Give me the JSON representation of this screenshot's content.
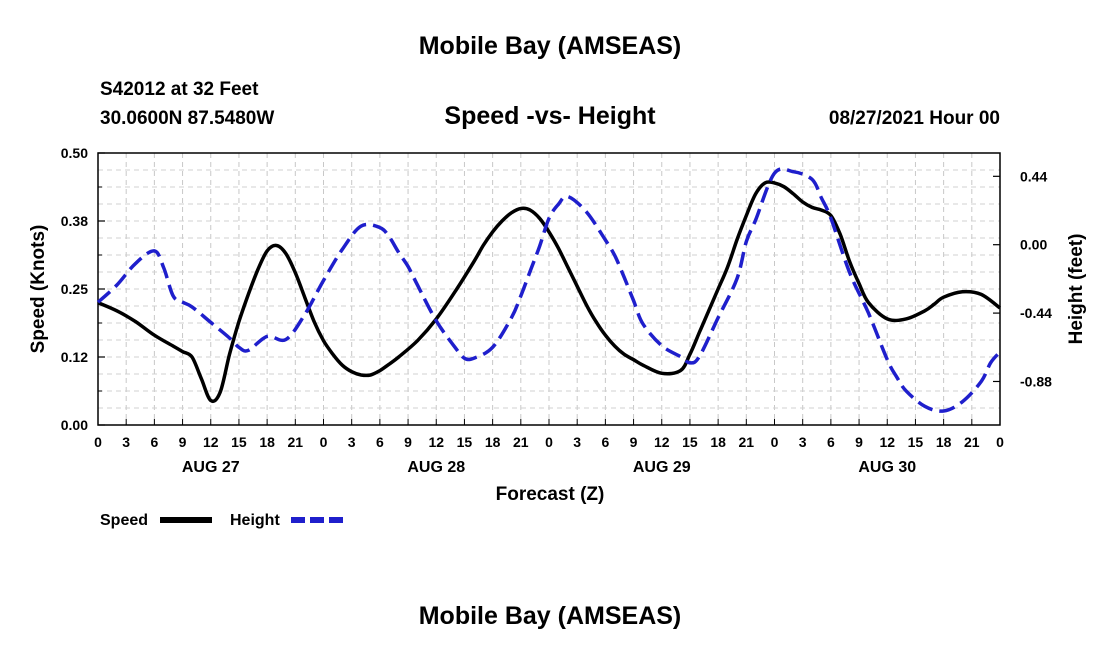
{
  "header": {
    "title": "Mobile Bay (AMSEAS)",
    "station": "S42012 at 32 Feet",
    "coords": "30.0600N  87.5480W",
    "subtitle": "Speed -vs- Height",
    "datetime": "08/27/2021 Hour 00",
    "footer_title": "Mobile Bay (AMSEAS)"
  },
  "legend": {
    "speed_label": "Speed",
    "height_label": "Height"
  },
  "chart_data": {
    "type": "line",
    "title": "Speed -vs- Height",
    "xlabel": "Forecast (Z)",
    "ylabel": "Speed (Knots)",
    "y2label": "Height (feet)",
    "xlim": [
      0,
      96
    ],
    "ylim": [
      0,
      0.5
    ],
    "y2lim": [
      -1.16,
      0.59
    ],
    "x_tick_labels": [
      "0",
      "3",
      "6",
      "9",
      "12",
      "15",
      "18",
      "21",
      "0",
      "3",
      "6",
      "9",
      "12",
      "15",
      "18",
      "21",
      "0",
      "3",
      "6",
      "9",
      "12",
      "15",
      "18",
      "21",
      "0",
      "3",
      "6",
      "9",
      "12",
      "15",
      "18",
      "21",
      "0"
    ],
    "day_labels": [
      {
        "hour": 12,
        "label": "AUG 27"
      },
      {
        "hour": 36,
        "label": "AUG 28"
      },
      {
        "hour": 60,
        "label": "AUG 29"
      },
      {
        "hour": 84,
        "label": "AUG 30"
      }
    ],
    "y_ticks": [
      "0.00",
      "0.12",
      "0.25",
      "0.38",
      "0.50"
    ],
    "y_tick_values": [
      0,
      0.125,
      0.25,
      0.375,
      0.5
    ],
    "y2_ticks": [
      "-0.88",
      "-0.44",
      "0.00",
      "0.44"
    ],
    "y2_tick_values": [
      -0.88,
      -0.44,
      0,
      0.44
    ],
    "grid": true,
    "series": [
      {
        "name": "Speed",
        "axis": "left",
        "color": "#000000",
        "dash": "solid",
        "x": [
          0,
          2,
          4,
          6,
          8,
          9,
          10,
          11,
          12,
          13,
          14,
          15,
          16,
          17,
          18,
          19,
          20,
          21,
          22,
          23,
          24,
          25,
          26,
          27,
          28,
          29,
          30,
          31,
          32,
          34,
          36,
          38,
          40,
          41,
          42,
          43,
          44,
          45,
          46,
          47,
          48,
          49,
          50,
          51,
          52,
          53,
          54,
          55,
          56,
          57,
          58,
          60,
          62,
          63,
          64,
          65,
          66,
          67,
          68,
          69,
          70,
          71,
          72,
          73,
          74,
          75,
          76,
          77,
          78,
          79,
          80,
          81,
          82,
          84,
          86,
          88,
          89,
          90,
          92,
          94,
          96
        ],
        "y": [
          0.225,
          0.21,
          0.19,
          0.165,
          0.145,
          0.135,
          0.125,
          0.085,
          0.045,
          0.06,
          0.13,
          0.19,
          0.24,
          0.285,
          0.32,
          0.33,
          0.315,
          0.28,
          0.235,
          0.19,
          0.155,
          0.13,
          0.11,
          0.098,
          0.092,
          0.092,
          0.1,
          0.112,
          0.125,
          0.155,
          0.195,
          0.245,
          0.3,
          0.33,
          0.355,
          0.375,
          0.39,
          0.398,
          0.395,
          0.38,
          0.355,
          0.325,
          0.29,
          0.255,
          0.22,
          0.19,
          0.165,
          0.145,
          0.13,
          0.12,
          0.11,
          0.095,
          0.1,
          0.13,
          0.17,
          0.21,
          0.25,
          0.29,
          0.34,
          0.385,
          0.425,
          0.445,
          0.445,
          0.438,
          0.425,
          0.41,
          0.4,
          0.395,
          0.385,
          0.35,
          0.3,
          0.26,
          0.225,
          0.195,
          0.195,
          0.21,
          0.222,
          0.235,
          0.245,
          0.24,
          0.215
        ]
      },
      {
        "name": "Height",
        "axis": "right",
        "color": "#1f1fcc",
        "dash": "dashed",
        "x": [
          0,
          2,
          4,
          6,
          7,
          8,
          9,
          10,
          12,
          14,
          15,
          16,
          18,
          20,
          22,
          24,
          26,
          28,
          30,
          31,
          32,
          33,
          34,
          36,
          38,
          39,
          40,
          42,
          44,
          45,
          46,
          47,
          48,
          49,
          50,
          52,
          54,
          55,
          56,
          57,
          58,
          60,
          62,
          63,
          64,
          66,
          68,
          69,
          70,
          72,
          74,
          76,
          77,
          78,
          80,
          82,
          84,
          85,
          86,
          88,
          90,
          92,
          94,
          95,
          96
        ],
        "y": [
          -0.37,
          -0.26,
          -0.12,
          -0.04,
          -0.15,
          -0.33,
          -0.37,
          -0.4,
          -0.5,
          -0.6,
          -0.66,
          -0.68,
          -0.59,
          -0.61,
          -0.45,
          -0.23,
          -0.03,
          0.12,
          0.11,
          0.05,
          -0.05,
          -0.14,
          -0.26,
          -0.49,
          -0.66,
          -0.73,
          -0.73,
          -0.66,
          -0.47,
          -0.33,
          -0.17,
          -0.01,
          0.17,
          0.26,
          0.31,
          0.21,
          0.03,
          -0.07,
          -0.21,
          -0.36,
          -0.51,
          -0.65,
          -0.72,
          -0.76,
          -0.72,
          -0.47,
          -0.22,
          0.02,
          0.16,
          0.46,
          0.47,
          0.42,
          0.3,
          0.17,
          -0.18,
          -0.44,
          -0.74,
          -0.85,
          -0.94,
          -1.04,
          -1.07,
          -1.01,
          -0.88,
          -0.76,
          -0.69
        ]
      }
    ]
  }
}
